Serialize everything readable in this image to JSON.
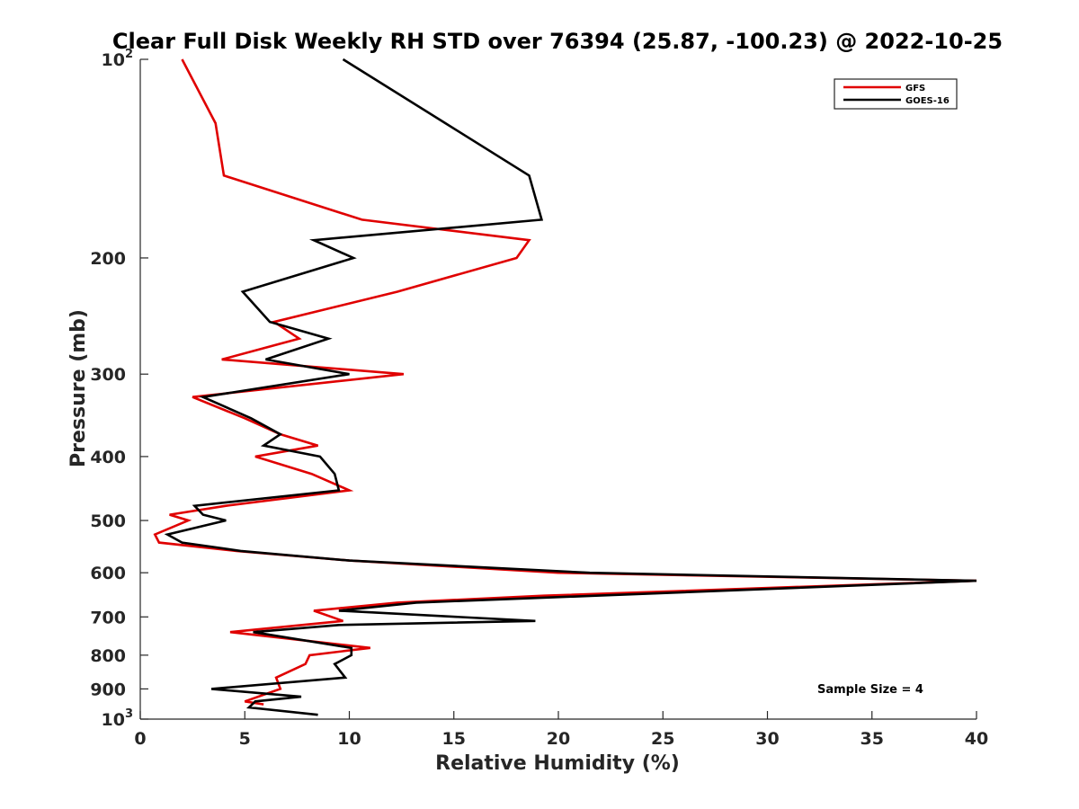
{
  "chart_data": {
    "type": "line",
    "title": "Clear Full Disk Weekly RH STD over 76394 (25.87, -100.23) @ 2022-10-25",
    "xlabel": "Relative Humidity (%)",
    "ylabel": "Pressure (mb)",
    "xlim": [
      0,
      40
    ],
    "ylim": [
      100,
      1000
    ],
    "yscale": "log",
    "yreversed": true,
    "grid": false,
    "legend_position": "top-right",
    "x_ticks": [
      0,
      5,
      10,
      15,
      20,
      25,
      30,
      35,
      40
    ],
    "x_tick_labels": [
      "0",
      "5",
      "10",
      "15",
      "20",
      "25",
      "30",
      "35",
      "40"
    ],
    "y_ticks": [
      {
        "value": 100,
        "base": "10",
        "exp": "2"
      },
      {
        "value": 200,
        "label": "200"
      },
      {
        "value": 300,
        "label": "300"
      },
      {
        "value": 400,
        "label": "400"
      },
      {
        "value": 500,
        "label": "500"
      },
      {
        "value": 600,
        "label": "600"
      },
      {
        "value": 700,
        "label": "700"
      },
      {
        "value": 800,
        "label": "800"
      },
      {
        "value": 900,
        "label": "900"
      },
      {
        "value": 1000,
        "base": "10",
        "exp": "3"
      }
    ],
    "annotation": "Sample Size = 4",
    "series": [
      {
        "name": "GFS",
        "color": "#e00000",
        "points": [
          [
            2.0,
            100
          ],
          [
            3.6,
            125
          ],
          [
            4.0,
            150
          ],
          [
            10.6,
            175
          ],
          [
            18.6,
            188
          ],
          [
            18.0,
            200
          ],
          [
            12.3,
            225
          ],
          [
            6.4,
            250
          ],
          [
            7.6,
            265
          ],
          [
            3.9,
            285
          ],
          [
            12.6,
            300
          ],
          [
            2.5,
            325
          ],
          [
            5.0,
            350
          ],
          [
            6.7,
            370
          ],
          [
            8.5,
            385
          ],
          [
            5.5,
            400
          ],
          [
            8.2,
            425
          ],
          [
            10.0,
            450
          ],
          [
            4.1,
            475
          ],
          [
            1.4,
            490
          ],
          [
            2.3,
            500
          ],
          [
            0.7,
            525
          ],
          [
            0.9,
            540
          ],
          [
            4.6,
            556
          ],
          [
            10.0,
            575
          ],
          [
            20.0,
            600
          ],
          [
            40.0,
            617
          ],
          [
            19.3,
            650
          ],
          [
            12.3,
            666
          ],
          [
            8.3,
            685
          ],
          [
            9.7,
            710
          ],
          [
            4.3,
            738
          ],
          [
            11.0,
            780
          ],
          [
            8.1,
            800
          ],
          [
            7.9,
            825
          ],
          [
            6.5,
            865
          ],
          [
            6.7,
            900
          ],
          [
            5.0,
            940
          ],
          [
            5.9,
            950
          ]
        ]
      },
      {
        "name": "GOES-16",
        "color": "#000000",
        "points": [
          [
            9.7,
            100
          ],
          [
            14.6,
            125
          ],
          [
            18.6,
            150
          ],
          [
            19.2,
            175
          ],
          [
            8.3,
            188
          ],
          [
            10.2,
            200
          ],
          [
            4.9,
            225
          ],
          [
            6.2,
            250
          ],
          [
            9.0,
            265
          ],
          [
            6.0,
            285
          ],
          [
            10.0,
            300
          ],
          [
            3.0,
            325
          ],
          [
            5.3,
            350
          ],
          [
            6.7,
            370
          ],
          [
            5.9,
            385
          ],
          [
            8.6,
            400
          ],
          [
            9.3,
            425
          ],
          [
            9.5,
            450
          ],
          [
            2.6,
            475
          ],
          [
            3.0,
            490
          ],
          [
            4.1,
            500
          ],
          [
            1.3,
            525
          ],
          [
            2.0,
            540
          ],
          [
            4.8,
            556
          ],
          [
            10.0,
            575
          ],
          [
            21.5,
            600
          ],
          [
            40.0,
            617
          ],
          [
            21.8,
            650
          ],
          [
            13.2,
            666
          ],
          [
            9.5,
            685
          ],
          [
            18.9,
            710
          ],
          [
            9.5,
            720
          ],
          [
            5.4,
            738
          ],
          [
            10.1,
            780
          ],
          [
            10.1,
            800
          ],
          [
            9.3,
            825
          ],
          [
            9.8,
            865
          ],
          [
            3.4,
            900
          ],
          [
            7.7,
            925
          ],
          [
            5.5,
            940
          ],
          [
            5.2,
            960
          ],
          [
            8.5,
            985
          ]
        ]
      }
    ]
  }
}
